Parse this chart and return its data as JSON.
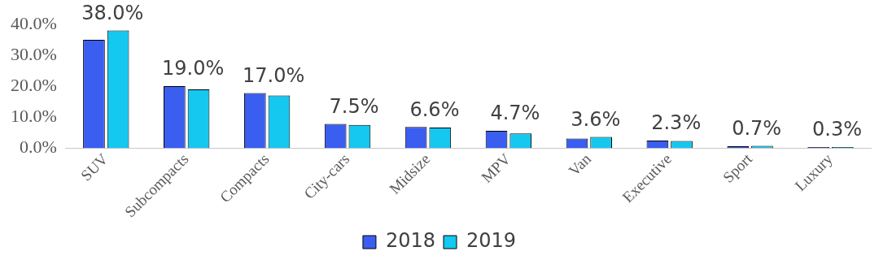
{
  "chart_data": {
    "type": "bar",
    "categories": [
      "SUV",
      "Subcompacts",
      "Compacts",
      "City-cars",
      "Midsize",
      "MPV",
      "Van",
      "Executive",
      "Sport",
      "Luxury"
    ],
    "series": [
      {
        "name": "2018",
        "color": "#3a5ef0",
        "values": [
          35,
          20,
          17.8,
          7.8,
          6.8,
          5.6,
          3.1,
          2.4,
          0.6,
          0.3
        ]
      },
      {
        "name": "2019",
        "color": "#15c8f0",
        "values": [
          38,
          19,
          17,
          7.5,
          6.6,
          4.7,
          3.6,
          2.3,
          0.7,
          0.3
        ],
        "value_labels": [
          "38.0%",
          "19.0%",
          "17.0%",
          "7.5%",
          "6.6%",
          "4.7%",
          "3.6%",
          "2.3%",
          "0.7%",
          "0.3%"
        ]
      }
    ],
    "ylim": [
      0,
      40
    ],
    "yticks": [
      {
        "value": 0,
        "label": "0.0%"
      },
      {
        "value": 10,
        "label": "10.0%"
      },
      {
        "value": 20,
        "label": "20.0%"
      },
      {
        "value": 30,
        "label": "30.0%"
      },
      {
        "value": 40,
        "label": "40.0%"
      }
    ],
    "grid": false,
    "legend": "bottom"
  }
}
